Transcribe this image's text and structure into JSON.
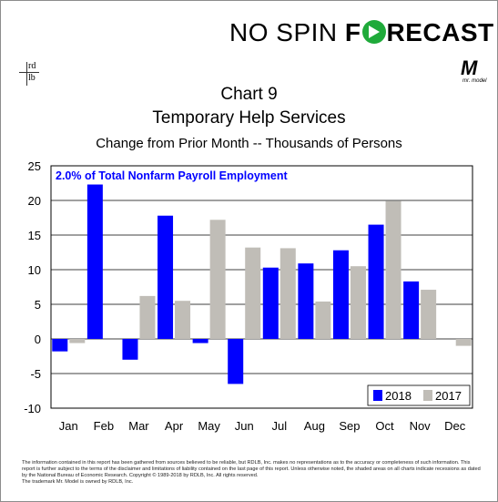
{
  "brand": {
    "part1": "NO SPIN ",
    "part2a": "F",
    "part2b": "RECAST",
    "icon": "forecast-arrow-icon",
    "color": "#1faa3a"
  },
  "logo": {
    "mark": "M",
    "caption": "mr. model",
    "icon": "mr-model-logo-icon"
  },
  "rdlb": {
    "top": "rd",
    "bottom": "lb",
    "icon": "rdlb-logo-icon"
  },
  "header": {
    "chart_number": "Chart 9",
    "title": "Temporary Help Services",
    "subtitle": "Change from Prior Month -- Thousands of Persons"
  },
  "chart_data": {
    "type": "bar",
    "annotation": "2.0% of Total Nonfarm Payroll Employment",
    "categories": [
      "Jan",
      "Feb",
      "Mar",
      "Apr",
      "May",
      "Jun",
      "Jul",
      "Aug",
      "Sep",
      "Oct",
      "Nov",
      "Dec"
    ],
    "series": [
      {
        "name": "2018",
        "color": "#0000ff",
        "values": [
          -1.8,
          22.3,
          -3.0,
          17.8,
          -0.6,
          -6.5,
          10.3,
          10.9,
          12.8,
          16.5,
          8.3,
          null
        ]
      },
      {
        "name": "2017",
        "color": "#c0bdb7",
        "values": [
          -0.6,
          null,
          6.2,
          5.5,
          17.2,
          13.2,
          13.1,
          5.4,
          10.5,
          19.9,
          7.1,
          -1.0
        ]
      }
    ],
    "ylim": [
      -10,
      25
    ],
    "yticks": [
      25,
      20,
      15,
      10,
      5,
      0,
      -5,
      -10
    ],
    "legend_position": "bottom-right",
    "grid": "horizontal"
  },
  "footer": {
    "disclaimer": "The information contained in this report has been gathered from sources believed to be reliable, but RDLB, Inc. makes no representations as to the accuracy or completeness of such information. This report is further subject to the terms of the disclaimer and limitations of liability contained on the last page of this report. Unless otherwise noted, the shaded areas on all charts indicate recessions as dated by the National Bureau of Economic Research. Copyright © 1989-2018 by RDLB, Inc. All rights reserved.",
    "trademark": "The trademark Mr. Model is owned by RDLB, Inc."
  }
}
